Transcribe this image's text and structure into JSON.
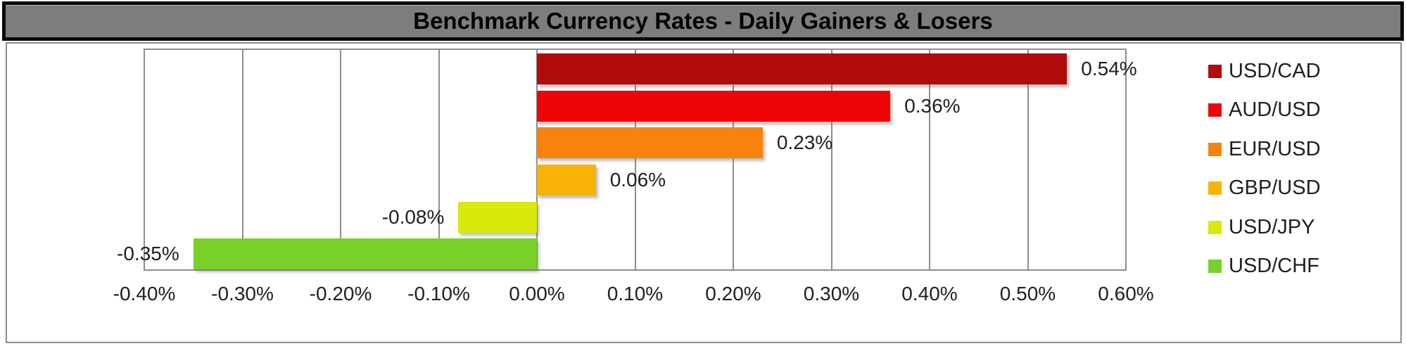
{
  "header": {
    "title": "Benchmark Currency Rates - Daily Gainers & Losers"
  },
  "chart_data": {
    "type": "bar",
    "orientation": "horizontal",
    "title": "Benchmark Currency Rates - Daily Gainers & Losers",
    "categories": [
      "USD/CAD",
      "AUD/USD",
      "EUR/USD",
      "GBP/USD",
      "USD/JPY",
      "USD/CHF"
    ],
    "values": [
      0.54,
      0.36,
      0.23,
      0.06,
      -0.08,
      -0.35
    ],
    "value_labels": [
      "0.54%",
      "0.36%",
      "0.23%",
      "0.06%",
      "-0.08%",
      "-0.35%"
    ],
    "colors": [
      "#b00c0c",
      "#ee0404",
      "#f8820d",
      "#f8b306",
      "#d8ea0b",
      "#78d029"
    ],
    "xlim": [
      -0.4,
      0.6
    ],
    "x_ticks": [
      -0.4,
      -0.3,
      -0.2,
      -0.1,
      0.0,
      0.1,
      0.2,
      0.3,
      0.4,
      0.5,
      0.6
    ],
    "x_tick_labels": [
      "-0.40%",
      "-0.30%",
      "-0.20%",
      "-0.10%",
      "0.00%",
      "0.10%",
      "0.20%",
      "0.30%",
      "0.40%",
      "0.50%",
      "0.60%"
    ],
    "grid": "vertical",
    "legend_position": "right",
    "style": {
      "title_bar_bg": "#7d7d7d",
      "title_text_color": "#000000",
      "gridline_color": "#8e8e8e",
      "plot_border_color": "#8e8e8e",
      "label_text_color": "#1f1f1f",
      "plot_bg": "#ffffff"
    }
  }
}
